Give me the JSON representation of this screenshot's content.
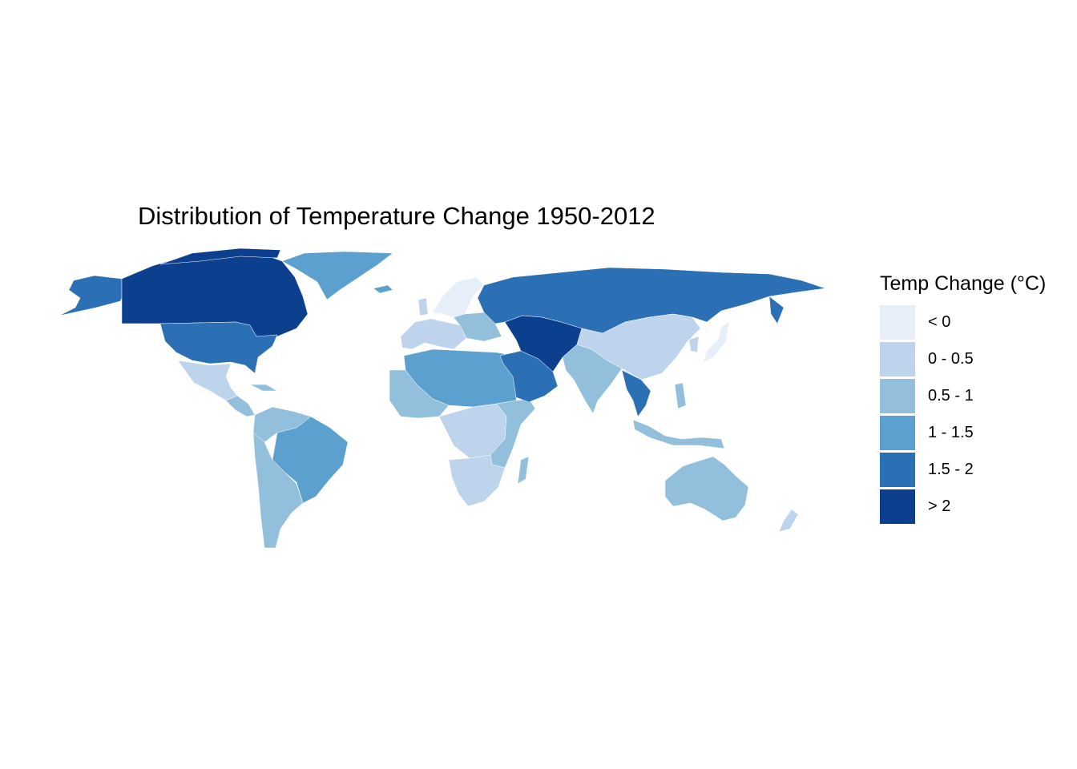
{
  "title": "Distribution of Temperature Change 1950-2012",
  "legend": {
    "title": "Temp Change (°C)",
    "items": [
      {
        "label": "< 0",
        "color": "#e6eefa"
      },
      {
        "label": "0 - 0.5",
        "color": "#bed3ec"
      },
      {
        "label": "0.5 - 1",
        "color": "#92bfdc"
      },
      {
        "label": "1 - 1.5",
        "color": "#5ba0ce"
      },
      {
        "label": "1.5 - 2",
        "color": "#2b70b4"
      },
      {
        "label": "> 2",
        "color": "#0c3f8e"
      }
    ]
  },
  "regions": [
    {
      "name": "canada",
      "class": "> 2"
    },
    {
      "name": "alaska",
      "class": "1.5 - 2"
    },
    {
      "name": "usa",
      "class": "1.5 - 2"
    },
    {
      "name": "greenland",
      "class": "1 - 1.5"
    },
    {
      "name": "mexico",
      "class": "0 - 0.5"
    },
    {
      "name": "central-america",
      "class": "0.5 - 1"
    },
    {
      "name": "northern-south-america",
      "class": "0.5 - 1"
    },
    {
      "name": "brazil",
      "class": "1 - 1.5"
    },
    {
      "name": "southern-south-america",
      "class": "0.5 - 1"
    },
    {
      "name": "scandinavia",
      "class": "< 0"
    },
    {
      "name": "europe",
      "class": "0 - 0.5"
    },
    {
      "name": "eastern-europe",
      "class": "0.5 - 1"
    },
    {
      "name": "russia",
      "class": "1.5 - 2"
    },
    {
      "name": "north-africa",
      "class": "1 - 1.5"
    },
    {
      "name": "west-africa",
      "class": "0.5 - 1"
    },
    {
      "name": "central-africa",
      "class": "0 - 0.5"
    },
    {
      "name": "east-africa",
      "class": "0.5 - 1"
    },
    {
      "name": "southern-africa",
      "class": "0 - 0.5"
    },
    {
      "name": "madagascar",
      "class": "0.5 - 1"
    },
    {
      "name": "arabia",
      "class": "1.5 - 2"
    },
    {
      "name": "iran-central-asia",
      "class": "> 2"
    },
    {
      "name": "india",
      "class": "0.5 - 1"
    },
    {
      "name": "china",
      "class": "0 - 0.5"
    },
    {
      "name": "southeast-asia",
      "class": "1.5 - 2"
    },
    {
      "name": "indonesia",
      "class": "0.5 - 1"
    },
    {
      "name": "japan",
      "class": "< 0"
    },
    {
      "name": "australia",
      "class": "0.5 - 1"
    },
    {
      "name": "new-zealand",
      "class": "0 - 0.5"
    }
  ]
}
